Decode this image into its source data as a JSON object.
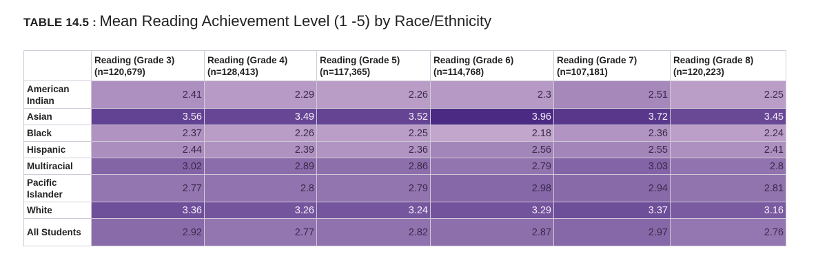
{
  "chart_data": {
    "type": "heatmap",
    "title_number": "TABLE 14.5 :",
    "title": "Mean Reading Achievement Level (1 -5) by Race/Ethnicity",
    "columns": [
      {
        "line1": "Reading (Grade 3)",
        "line2": "(n=120,679)"
      },
      {
        "line1": "Reading (Grade 4)",
        "line2": "(n=128,413)"
      },
      {
        "line1": "Reading (Grade 5)",
        "line2": "(n=117,365)"
      },
      {
        "line1": "Reading (Grade 6)",
        "line2": "(n=114,768)"
      },
      {
        "line1": "Reading (Grade 7)",
        "line2": "(n=107,181)"
      },
      {
        "line1": "Reading (Grade 8)",
        "line2": "(n=120,223)"
      }
    ],
    "rows": [
      {
        "label": "American Indian",
        "values": [
          "2.41",
          "2.29",
          "2.26",
          "2.3",
          "2.51",
          "2.25"
        ]
      },
      {
        "label": "Asian",
        "values": [
          "3.56",
          "3.49",
          "3.52",
          "3.96",
          "3.72",
          "3.45"
        ]
      },
      {
        "label": "Black",
        "values": [
          "2.37",
          "2.26",
          "2.25",
          "2.18",
          "2.36",
          "2.24"
        ]
      },
      {
        "label": "Hispanic",
        "values": [
          "2.44",
          "2.39",
          "2.36",
          "2.56",
          "2.55",
          "2.41"
        ]
      },
      {
        "label": "Multiracial",
        "values": [
          "3.02",
          "2.89",
          "2.86",
          "2.79",
          "3.03",
          "2.8"
        ]
      },
      {
        "label": "Pacific Islander",
        "values": [
          "2.77",
          "2.8",
          "2.79",
          "2.98",
          "2.94",
          "2.81"
        ]
      },
      {
        "label": "White",
        "values": [
          "3.36",
          "3.26",
          "3.24",
          "3.29",
          "3.37",
          "3.16"
        ]
      },
      {
        "label": "All Students",
        "values": [
          "2.92",
          "2.77",
          "2.82",
          "2.87",
          "2.97",
          "2.76"
        ]
      }
    ],
    "color_low": "#c2a6cc",
    "color_high": "#4b2a84"
  }
}
